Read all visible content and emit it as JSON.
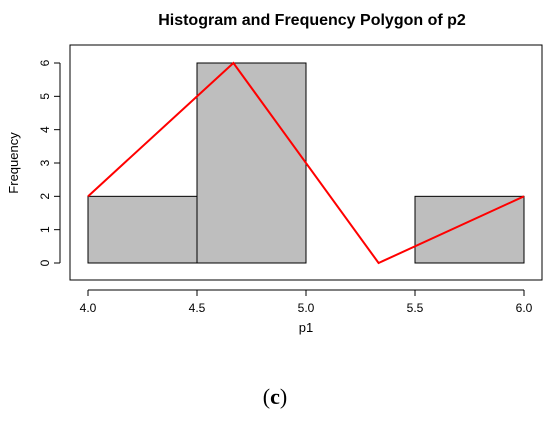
{
  "chart_data": {
    "type": "bar",
    "title": "Histogram and Frequency Polygon of p2",
    "xlabel": "p1",
    "ylabel": "Frequency",
    "xlim": [
      4.0,
      6.0
    ],
    "ylim": [
      0,
      6
    ],
    "x_ticks": [
      "4.0",
      "4.5",
      "5.0",
      "5.5",
      "6.0"
    ],
    "y_ticks": [
      "0",
      "1",
      "2",
      "3",
      "4",
      "5",
      "6"
    ],
    "bins": [
      {
        "start": 4.0,
        "end": 4.5,
        "count": 2
      },
      {
        "start": 4.5,
        "end": 5.0,
        "count": 6
      },
      {
        "start": 5.0,
        "end": 5.5,
        "count": 0
      },
      {
        "start": 5.5,
        "end": 6.0,
        "count": 2
      }
    ],
    "series": [
      {
        "type": "line",
        "x": [
          4.0,
          4.667,
          5.333,
          6.0
        ],
        "values": [
          2,
          6,
          0,
          2
        ]
      }
    ],
    "colors": {
      "bar_fill": "#bebebe",
      "bar_stroke": "#000000",
      "polygon": "#ff0000"
    }
  },
  "caption": {
    "open": "(",
    "label": "c",
    "close": ")"
  }
}
